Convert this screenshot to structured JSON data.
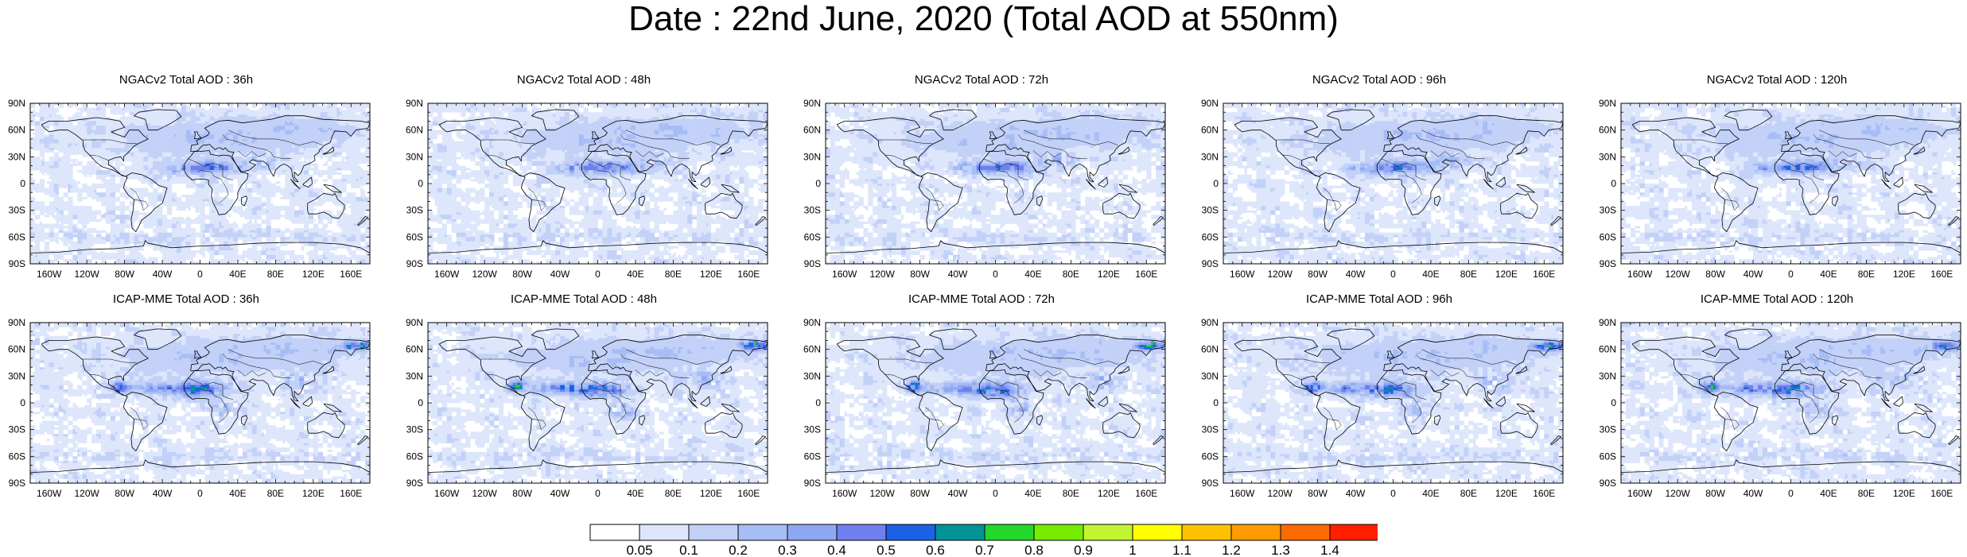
{
  "title": "Date : 22nd June, 2020 (Total AOD at 550nm)",
  "lat_labels": [
    "90N",
    "60N",
    "30N",
    "0",
    "30S",
    "60S",
    "90S"
  ],
  "lon_labels": [
    "160W",
    "120W",
    "80W",
    "40W",
    "0",
    "40E",
    "80E",
    "120E",
    "160E"
  ],
  "panels": [
    {
      "title": "NGACv2 Total AOD : 36h",
      "model": "NGACv2",
      "lead": "36h",
      "row": 0,
      "col": 0
    },
    {
      "title": "NGACv2 Total AOD : 48h",
      "model": "NGACv2",
      "lead": "48h",
      "row": 0,
      "col": 1
    },
    {
      "title": "NGACv2 Total AOD : 72h",
      "model": "NGACv2",
      "lead": "72h",
      "row": 0,
      "col": 2
    },
    {
      "title": "NGACv2 Total AOD : 96h",
      "model": "NGACv2",
      "lead": "96h",
      "row": 0,
      "col": 3
    },
    {
      "title": "NGACv2 Total AOD : 120h",
      "model": "NGACv2",
      "lead": "120h",
      "row": 0,
      "col": 4
    },
    {
      "title": "ICAP-MME Total AOD : 36h",
      "model": "ICAP-MME",
      "lead": "36h",
      "row": 1,
      "col": 0
    },
    {
      "title": "ICAP-MME Total AOD : 48h",
      "model": "ICAP-MME",
      "lead": "48h",
      "row": 1,
      "col": 1
    },
    {
      "title": "ICAP-MME Total AOD : 72h",
      "model": "ICAP-MME",
      "lead": "72h",
      "row": 1,
      "col": 2
    },
    {
      "title": "ICAP-MME Total AOD : 96h",
      "model": "ICAP-MME",
      "lead": "96h",
      "row": 1,
      "col": 3
    },
    {
      "title": "ICAP-MME Total AOD : 120h",
      "model": "ICAP-MME",
      "lead": "120h",
      "row": 1,
      "col": 4
    }
  ],
  "colorbar": {
    "labels": [
      "0.05",
      "0.1",
      "0.2",
      "0.3",
      "0.4",
      "0.5",
      "0.6",
      "0.7",
      "0.8",
      "0.9",
      "1",
      "1.1",
      "1.2",
      "1.3",
      "1.4"
    ],
    "colors": [
      "#ffffff",
      "#dde6fb",
      "#c3d1f8",
      "#a7bdf6",
      "#8da8f3",
      "#6f7ff0",
      "#1c62e6",
      "#009398",
      "#24d72d",
      "#76ec00",
      "#c3f431",
      "#ffff00",
      "#ffc200",
      "#ff9b00",
      "#ff6a00",
      "#ff1e00"
    ]
  }
}
